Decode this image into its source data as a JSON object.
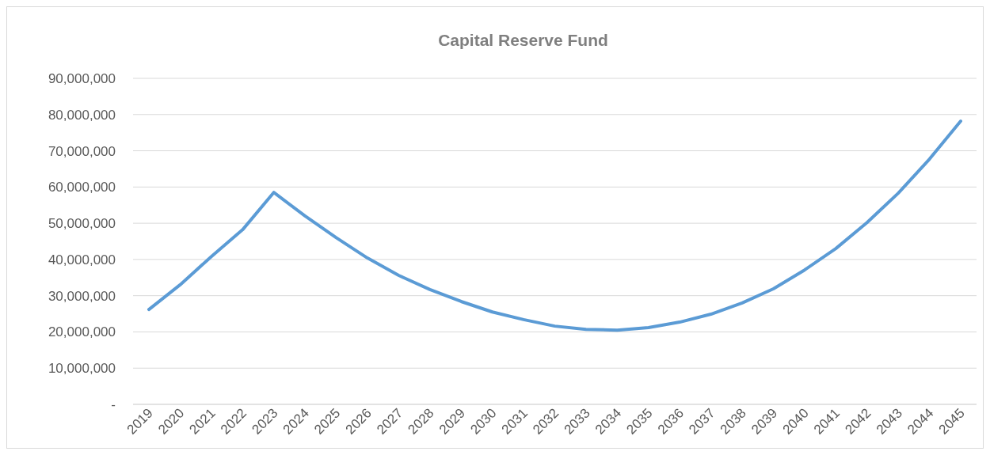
{
  "chart_data": {
    "type": "line",
    "title": "Capital Reserve Fund",
    "categories": [
      "2019",
      "2020",
      "2021",
      "2022",
      "2023",
      "2024",
      "2025",
      "2026",
      "2027",
      "2028",
      "2029",
      "2030",
      "2031",
      "2032",
      "2033",
      "2034",
      "2035",
      "2036",
      "2037",
      "2038",
      "2039",
      "2040",
      "2041",
      "2042",
      "2043",
      "2044",
      "2045"
    ],
    "series": [
      {
        "color": "#5b9bd5",
        "values": [
          26200000,
          33000000,
          40800000,
          48200000,
          58500000,
          52000000,
          46000000,
          40400000,
          35600000,
          31700000,
          28400000,
          25500000,
          23400000,
          21600000,
          20700000,
          20500000,
          21200000,
          22700000,
          24900000,
          28000000,
          31900000,
          37100000,
          43000000,
          50200000,
          58300000,
          67700000,
          78200000
        ]
      }
    ],
    "ylim": [
      0,
      90000000
    ],
    "yticks": [
      {
        "value": 0,
        "label": "-"
      },
      {
        "value": 10000000,
        "label": "10,000,000"
      },
      {
        "value": 20000000,
        "label": "20,000,000"
      },
      {
        "value": 30000000,
        "label": "30,000,000"
      },
      {
        "value": 40000000,
        "label": "40,000,000"
      },
      {
        "value": 50000000,
        "label": "50,000,000"
      },
      {
        "value": 60000000,
        "label": "60,000,000"
      },
      {
        "value": 70000000,
        "label": "70,000,000"
      },
      {
        "value": 80000000,
        "label": "80,000,000"
      },
      {
        "value": 90000000,
        "label": "90,000,000"
      }
    ],
    "grid": "y",
    "marker": "none",
    "line_style": "solid"
  }
}
